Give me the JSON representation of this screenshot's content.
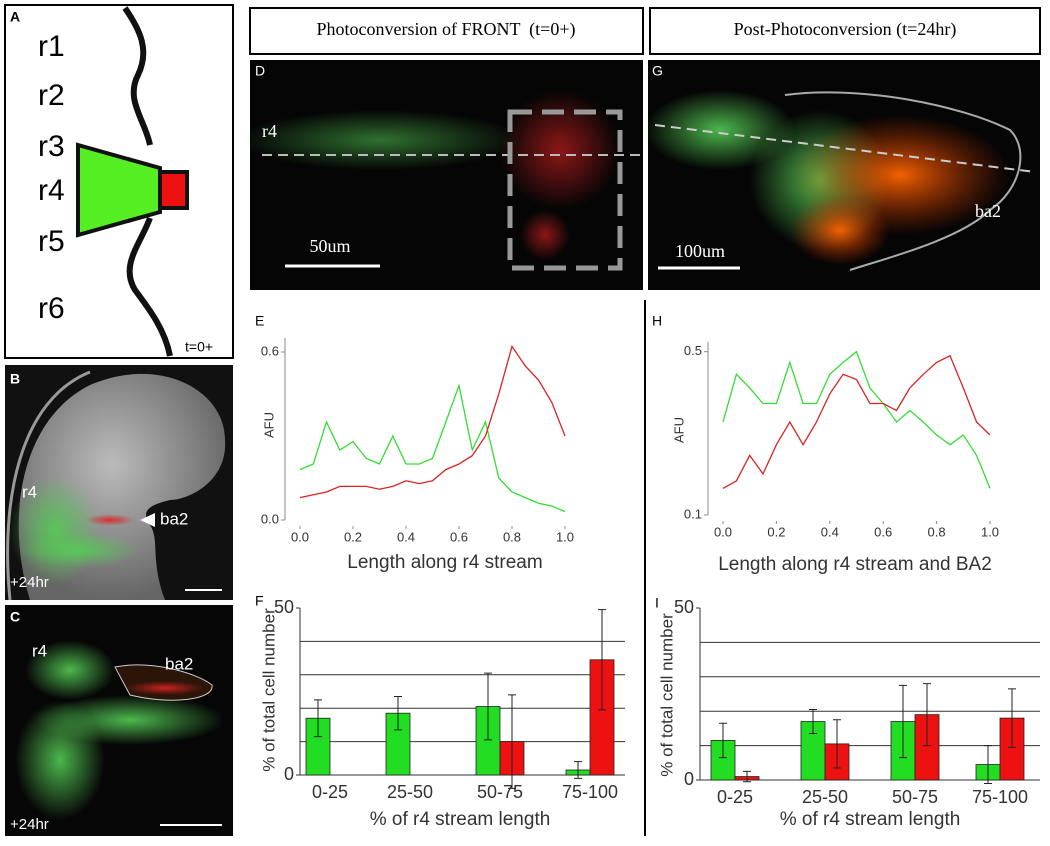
{
  "panel_a": {
    "letter": "A",
    "labels": [
      "r1",
      "r2",
      "r3",
      "r4",
      "r5",
      "r6"
    ],
    "time": "t=0+"
  },
  "panel_b": {
    "letter": "B",
    "labels": [
      "r4",
      "ba2"
    ],
    "time": "+24hr"
  },
  "panel_c": {
    "letter": "C",
    "labels": [
      "r4",
      "ba2"
    ],
    "time": "+24hr"
  },
  "headers": [
    "Photoconversion of FRONT  (t=0+)",
    "Post-Photoconversion (t=24hr)"
  ],
  "panel_d": {
    "letter": "D",
    "label": "r4",
    "scale": "50um"
  },
  "panel_g": {
    "letter": "G",
    "label": "ba2",
    "scale": "100um"
  },
  "chart_data": [
    {
      "type": "line",
      "panel": "E",
      "ylabel": "AFU",
      "xlabel": "Length along r4 stream",
      "x": [
        0,
        0.05,
        0.1,
        0.15,
        0.2,
        0.25,
        0.3,
        0.35,
        0.4,
        0.45,
        0.5,
        0.55,
        0.6,
        0.65,
        0.7,
        0.75,
        0.8,
        0.85,
        0.9,
        0.95,
        1.0
      ],
      "xlim": [
        0,
        1
      ],
      "xticks": [
        {
          "value": 0,
          "label": "0.0"
        },
        0.2,
        0.4,
        0.6,
        0.8,
        {
          "value": 1,
          "label": "1.0"
        }
      ],
      "ylim": [
        0,
        0.65
      ],
      "yticks": [
        {
          "value": 0,
          "label": "0.0"
        },
        0.6
      ],
      "series": [
        {
          "color": "#33dd33",
          "values": [
            0.18,
            0.2,
            0.35,
            0.25,
            0.28,
            0.22,
            0.2,
            0.3,
            0.2,
            0.2,
            0.22,
            0.35,
            0.48,
            0.25,
            0.35,
            0.15,
            0.1,
            0.08,
            0.06,
            0.05,
            0.03
          ]
        },
        {
          "color": "#dd2222",
          "values": [
            0.08,
            0.09,
            0.1,
            0.12,
            0.12,
            0.12,
            0.11,
            0.12,
            0.14,
            0.13,
            0.14,
            0.18,
            0.2,
            0.23,
            0.3,
            0.45,
            0.62,
            0.55,
            0.5,
            0.42,
            0.3
          ]
        }
      ]
    },
    {
      "type": "line",
      "panel": "H",
      "ylabel": "AFU",
      "xlabel": "Length along r4 stream and BA2",
      "log": true,
      "x": [
        0,
        0.05,
        0.1,
        0.15,
        0.2,
        0.25,
        0.3,
        0.35,
        0.4,
        0.45,
        0.5,
        0.55,
        0.6,
        0.65,
        0.7,
        0.75,
        0.8,
        0.85,
        0.9,
        0.95,
        1.0
      ],
      "xlim": [
        0,
        1
      ],
      "xticks": [
        {
          "value": 0,
          "label": "0.0"
        },
        0.2,
        0.4,
        0.6,
        0.8,
        {
          "value": 1,
          "label": "1.0"
        }
      ],
      "ylim": [
        0.1,
        0.55
      ],
      "yticks": [
        0.1,
        0.5
      ],
      "series": [
        {
          "color": "#33dd33",
          "values": [
            0.25,
            0.4,
            0.35,
            0.3,
            0.3,
            0.45,
            0.3,
            0.3,
            0.4,
            0.45,
            0.5,
            0.35,
            0.3,
            0.25,
            0.28,
            0.25,
            0.22,
            0.2,
            0.22,
            0.18,
            0.13
          ]
        },
        {
          "color": "#dd2222",
          "values": [
            0.13,
            0.14,
            0.18,
            0.15,
            0.2,
            0.25,
            0.2,
            0.25,
            0.33,
            0.4,
            0.38,
            0.3,
            0.3,
            0.28,
            0.35,
            0.4,
            0.45,
            0.48,
            0.35,
            0.25,
            0.22
          ]
        }
      ]
    },
    {
      "type": "bar",
      "panel": "F",
      "ylabel": "% of total cell number",
      "xlabel": "% of r4 stream length",
      "categories": [
        "0-25",
        "25-50",
        "50-75",
        "75-100"
      ],
      "ylim": [
        0,
        50
      ],
      "yticks": [
        0,
        50
      ],
      "gridlines": [
        10,
        20,
        30,
        40
      ],
      "series": [
        {
          "color": "#22dd22",
          "values": [
            17,
            18.5,
            20.5,
            1.5
          ],
          "errors": [
            5.5,
            5,
            10,
            2.5
          ]
        },
        {
          "color": "#ee1111",
          "values": [
            null,
            null,
            10,
            34.5
          ],
          "errors": [
            null,
            null,
            14,
            15
          ]
        }
      ]
    },
    {
      "type": "bar",
      "panel": "I",
      "ylabel": "% of total cell number",
      "xlabel": "% of r4 stream length",
      "categories": [
        "0-25",
        "25-50",
        "50-75",
        "75-100"
      ],
      "ylim": [
        0,
        50
      ],
      "yticks": [
        0,
        50
      ],
      "gridlines": [
        10,
        20,
        30,
        40
      ],
      "series": [
        {
          "color": "#22dd22",
          "values": [
            11.5,
            17,
            17,
            4.5
          ],
          "errors": [
            5,
            3.5,
            10.5,
            5.5
          ]
        },
        {
          "color": "#ee1111",
          "values": [
            1,
            10.5,
            19,
            18
          ],
          "errors": [
            1.5,
            7,
            9,
            8.5
          ]
        }
      ]
    }
  ]
}
